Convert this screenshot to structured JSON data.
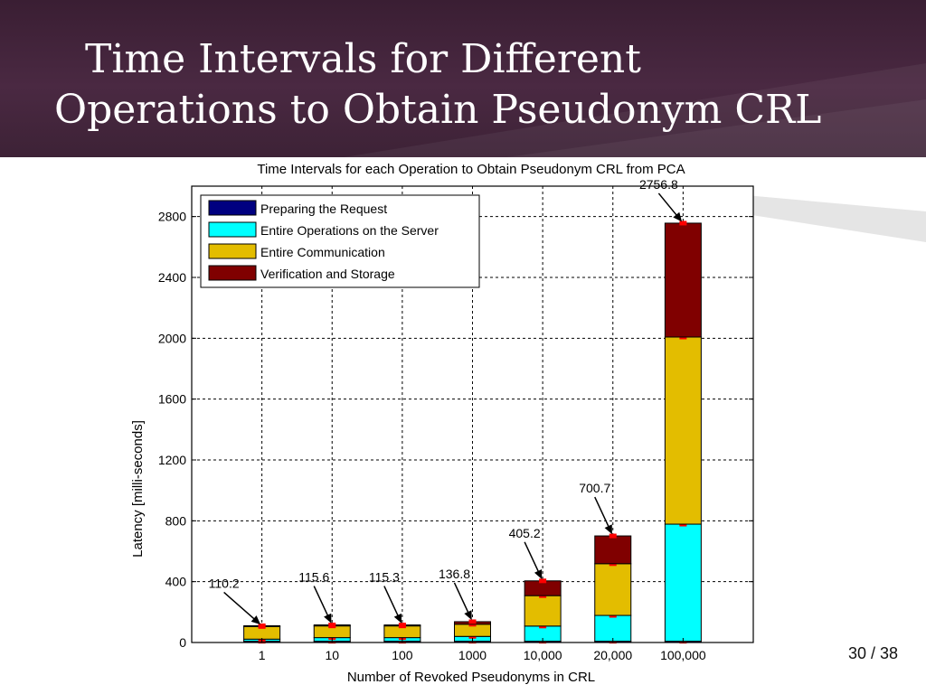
{
  "slide": {
    "title_line1": "Time Intervals for Different",
    "title_line2": "Operations to Obtain Pseudonym CRL",
    "page_number": "30 / 38"
  },
  "colors": {
    "header_bg": "#3e2338",
    "preparing": "#000080",
    "server": "#00ffff",
    "communication": "#e3bd00",
    "verification": "#800000",
    "error_bar": "#ff0000"
  },
  "chart_data": {
    "type": "bar",
    "stacked": true,
    "title": "Time Intervals for each Operation to Obtain Pseudonym CRL from PCA",
    "xlabel": "Number of Revoked Pseudonyms in CRL",
    "ylabel": "Latency [milli-seconds]",
    "ylim": [
      0,
      3000
    ],
    "yticks": [
      0,
      400,
      800,
      1200,
      1600,
      2000,
      2400,
      2800
    ],
    "grid": true,
    "legend_position": "top-left",
    "categories": [
      "1",
      "10",
      "100",
      "1000",
      "10,000",
      "20,000",
      "100,000"
    ],
    "series": [
      {
        "name": "Preparing the Request",
        "values": [
          8,
          8,
          8,
          8,
          8,
          8,
          8
        ]
      },
      {
        "name": "Entire Operations on the Server",
        "values": [
          14,
          24,
          24,
          32,
          100,
          170,
          770
        ]
      },
      {
        "name": "Entire Communication",
        "values": [
          83,
          77,
          77,
          80,
          200,
          340,
          1230
        ]
      },
      {
        "name": "Verification and Storage",
        "values": [
          5.2,
          6.6,
          6.3,
          16.8,
          97.2,
          182.7,
          748.8
        ]
      }
    ],
    "totals": [
      110.2,
      115.6,
      115.3,
      136.8,
      405.2,
      700.7,
      2756.8
    ],
    "total_labels": [
      "110.2",
      "115.6",
      "115.3",
      "136.8",
      "405.2",
      "700.7",
      "2756.8"
    ]
  }
}
